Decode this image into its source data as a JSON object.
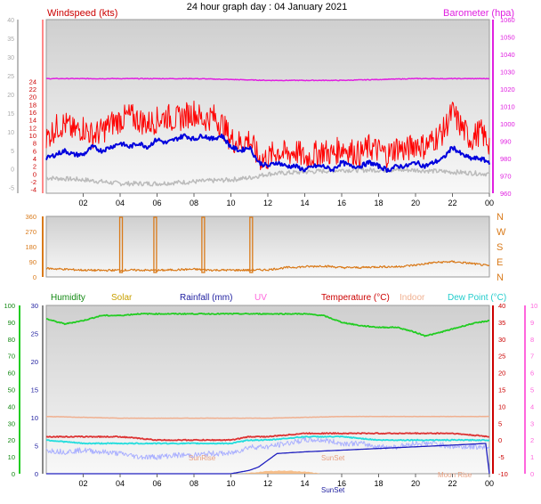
{
  "title": "24 hour graph day : 04 January 2021",
  "colors": {
    "wind_avg": "#0000dd",
    "wind_gust": "#ff0000",
    "wind_dir": "#d97a1a",
    "barometer": "#e020e0",
    "humidity": "#22cc22",
    "solar": "#c8a000",
    "rainfall": "#2020c0",
    "uv": "#ff66dd",
    "temperature": "#cc0000",
    "indoor": "#f0b090",
    "dew_point": "#22dddd",
    "panel_bg": "#e9e9e9"
  },
  "chart_data": [
    {
      "type": "line",
      "panel": "wind_barometer",
      "left_axis_label": "Windspeed (kts)",
      "right_axis_label": "Barometer (hpa)",
      "left_ylim": [
        -5,
        40
      ],
      "right_ylim": [
        960,
        1060
      ],
      "left_ticks": [
        "40",
        "35",
        "30",
        "25",
        "24",
        "22",
        "20",
        "18",
        "16",
        "14",
        "12",
        "10",
        "8",
        "6",
        "4",
        "2",
        "0",
        "-2",
        "-4"
      ],
      "right_ticks": [
        "1060",
        "1050",
        "1040",
        "1030",
        "1020",
        "1010",
        "1000",
        "990",
        "980",
        "970",
        "960"
      ],
      "xlabel": "",
      "x_ticks": [
        "02",
        "04",
        "06",
        "08",
        "10",
        "12",
        "14",
        "16",
        "18",
        "20",
        "22",
        "00"
      ],
      "series": [
        {
          "key": "gust",
          "hours": [
            0,
            0.5,
            1,
            1.5,
            2,
            2.5,
            3,
            3.5,
            4,
            4.5,
            5,
            5.5,
            6,
            6.5,
            7,
            7.5,
            8,
            8.5,
            9,
            9.5,
            10,
            10.5,
            11,
            11.5,
            12,
            12.5,
            13,
            13.5,
            14,
            14.5,
            15,
            15.5,
            16,
            16.5,
            17,
            17.5,
            18,
            18.5,
            19,
            19.5,
            20,
            20.5,
            21,
            21.5,
            22,
            22.5,
            23,
            23.5,
            24
          ],
          "values": [
            9,
            12,
            13,
            11,
            12,
            10,
            11,
            13,
            14,
            15,
            14,
            13,
            14,
            15,
            14,
            15,
            16,
            14,
            15,
            13,
            9,
            8,
            9,
            4,
            4,
            6,
            5,
            6,
            4,
            5,
            6,
            5,
            7,
            6,
            5,
            7,
            6,
            5,
            7,
            6,
            8,
            7,
            9,
            11,
            16,
            12,
            9,
            11,
            8
          ]
        },
        {
          "key": "avg",
          "hours": [
            0,
            0.5,
            1,
            1.5,
            2,
            2.5,
            3,
            3.5,
            4,
            4.5,
            5,
            5.5,
            6,
            6.5,
            7,
            7.5,
            8,
            8.5,
            9,
            9.5,
            10,
            10.5,
            11,
            11.5,
            12,
            12.5,
            13,
            13.5,
            14,
            14.5,
            15,
            15.5,
            16,
            16.5,
            17,
            17.5,
            18,
            18.5,
            19,
            19.5,
            20,
            20.5,
            21,
            21.5,
            22,
            22.5,
            23,
            23.5,
            24
          ],
          "values": [
            4,
            5,
            6,
            5,
            5,
            7,
            6,
            7,
            8,
            7,
            8,
            7,
            9,
            8,
            9,
            10,
            9,
            10,
            9,
            10,
            7,
            6,
            7,
            3,
            2,
            3,
            2,
            2,
            1,
            2,
            2,
            1,
            3,
            2,
            2,
            3,
            2,
            1,
            2,
            2,
            3,
            2,
            3,
            4,
            7,
            5,
            4,
            4,
            3
          ]
        },
        {
          "key": "barometer",
          "hours": [
            0,
            4,
            8,
            12,
            16,
            20,
            24
          ],
          "values": [
            1026,
            1026,
            1026,
            1025,
            1025,
            1026,
            1026
          ]
        }
      ]
    },
    {
      "type": "line",
      "panel": "wind_direction",
      "left_ticks": [
        "360",
        "270",
        "180",
        "90",
        "0"
      ],
      "right_ticks": [
        "N",
        "W",
        "S",
        "E",
        "N"
      ],
      "ylim": [
        0,
        360
      ],
      "series": [
        {
          "key": "direction",
          "hours": [
            0,
            1,
            2,
            3,
            4,
            5,
            6,
            7,
            8,
            9,
            10,
            11,
            12,
            13,
            14,
            15,
            16,
            17,
            18,
            19,
            20,
            21,
            22,
            23,
            24
          ],
          "values": [
            40,
            35,
            30,
            28,
            30,
            30,
            28,
            32,
            35,
            30,
            30,
            30,
            32,
            45,
            50,
            55,
            45,
            45,
            50,
            50,
            60,
            75,
            80,
            70,
            55
          ]
        }
      ],
      "spikes_hours": [
        4.05,
        5.9,
        8.5,
        11.1
      ]
    },
    {
      "type": "line",
      "panel": "temperature_humidity",
      "labels": {
        "humidity": "Humidity",
        "solar": "Solar",
        "rainfall": "Rainfall (mm)",
        "uv": "UV",
        "temperature": "Temperature (°C)",
        "indoor": "Indoor",
        "dew_point": "Dew Point (°C)"
      },
      "axis1_ticks": [
        "100",
        "90",
        "80",
        "70",
        "60",
        "50",
        "40",
        "30",
        "20",
        "10",
        "0"
      ],
      "axis2_ticks": [
        "30",
        "25",
        "20",
        "15",
        "10",
        "5",
        "0"
      ],
      "right1_ticks": [
        "40",
        "35",
        "30",
        "25",
        "20",
        "15",
        "10",
        "5",
        "0",
        "-5",
        "-10"
      ],
      "right2_ticks": [
        "10",
        "9",
        "8",
        "7",
        "6",
        "5",
        "4",
        "3",
        "2",
        "1",
        "0"
      ],
      "annotations": [
        "SunRise",
        "SunSet",
        "SunSet",
        "Moon Rise"
      ],
      "temp_ylim": [
        -10,
        40
      ],
      "humidity_ylim": [
        0,
        100
      ],
      "series": [
        {
          "key": "humidity",
          "hours": [
            0,
            1,
            2,
            3,
            4,
            5,
            6,
            7,
            8,
            9,
            10,
            11,
            12,
            13,
            14,
            15,
            16,
            17,
            18,
            19,
            20,
            20.5,
            21,
            22,
            23,
            24
          ],
          "values": [
            92,
            89,
            91,
            94,
            94,
            95,
            95,
            95,
            95,
            95,
            95,
            95,
            95,
            95,
            95,
            94,
            90,
            88,
            87,
            87,
            84,
            82,
            83,
            86,
            89,
            91
          ]
        },
        {
          "key": "temperature",
          "hours": [
            0,
            2,
            4,
            6,
            8,
            10,
            11,
            12,
            14,
            16,
            18,
            20,
            22,
            24
          ],
          "values": [
            1,
            1,
            1,
            0,
            0,
            0,
            1,
            1,
            2,
            2,
            2,
            2,
            2,
            1
          ]
        },
        {
          "key": "dew_point",
          "hours": [
            0,
            2,
            4,
            6,
            8,
            10,
            11,
            12,
            14,
            16,
            18,
            20,
            22,
            24
          ],
          "values": [
            0,
            -1,
            -1,
            -1,
            -1,
            -1,
            0,
            0,
            1,
            1,
            0,
            0,
            0,
            0
          ]
        },
        {
          "key": "indoor",
          "hours": [
            0,
            4,
            8,
            12,
            16,
            20,
            24
          ],
          "values": [
            7,
            6.5,
            6.5,
            6.5,
            7,
            7,
            7
          ]
        },
        {
          "key": "solar_wetbulb",
          "hours": [
            0,
            1,
            2,
            3,
            4,
            5,
            6,
            7,
            8,
            9,
            10,
            11,
            12,
            13,
            14,
            15,
            16,
            17,
            18,
            19,
            20,
            21,
            22,
            23,
            24
          ],
          "values": [
            -3,
            -3.5,
            -3,
            -3.5,
            -4,
            -5,
            -5,
            -4.5,
            -4.5,
            -4,
            -4,
            -2,
            -2,
            -1,
            0,
            0,
            -1,
            -1,
            -2,
            -2,
            -1,
            -1,
            -2,
            -2,
            -2
          ]
        },
        {
          "key": "rainfall",
          "hours": [
            0,
            10,
            11,
            11.5,
            12,
            12.5,
            14,
            16,
            18,
            20,
            22,
            23.8,
            24
          ],
          "values": [
            0,
            0,
            0.2,
            0.4,
            0.8,
            1.2,
            1.3,
            1.4,
            1.5,
            1.6,
            1.7,
            1.8,
            0
          ]
        }
      ]
    }
  ]
}
